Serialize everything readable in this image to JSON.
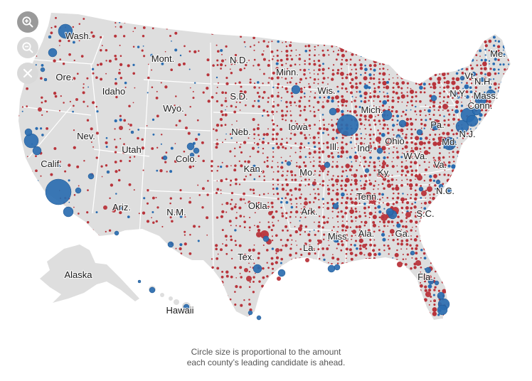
{
  "controls": {
    "zoom_in": "zoom-in-icon",
    "zoom_out": "zoom-out-icon",
    "reset": "close-icon"
  },
  "colors": {
    "republican": "#b8343b",
    "democrat": "#2a6cb0",
    "land": "#dedede",
    "state_border": "#ffffff"
  },
  "state_labels": [
    "Wash.",
    "Ore.",
    "Calif.",
    "Nev.",
    "Idaho",
    "Mont.",
    "Wyo.",
    "Utah",
    "Ariz.",
    "Colo.",
    "N.M.",
    "N.D.",
    "S.D.",
    "Neb.",
    "Kan.",
    "Okla.",
    "Tex.",
    "Minn.",
    "Iowa",
    "Mo.",
    "Ark.",
    "La.",
    "Wis.",
    "Ill.",
    "Mich.",
    "Ind.",
    "Ohio",
    "Ky.",
    "Tenn.",
    "Miss.",
    "Ala.",
    "Ga.",
    "Fla.",
    "S.C.",
    "N.C.",
    "Va.",
    "W.Va.",
    "Pa.",
    "Md.",
    "N.J.",
    "N.Y.",
    "Conn.",
    "Mass.",
    "Vt.",
    "N.H.",
    "Me.",
    "Alaska",
    "Hawaii"
  ],
  "caption": {
    "line1": "Circle size is proportional to the amount",
    "line2": "each county’s leading candidate is ahead."
  }
}
